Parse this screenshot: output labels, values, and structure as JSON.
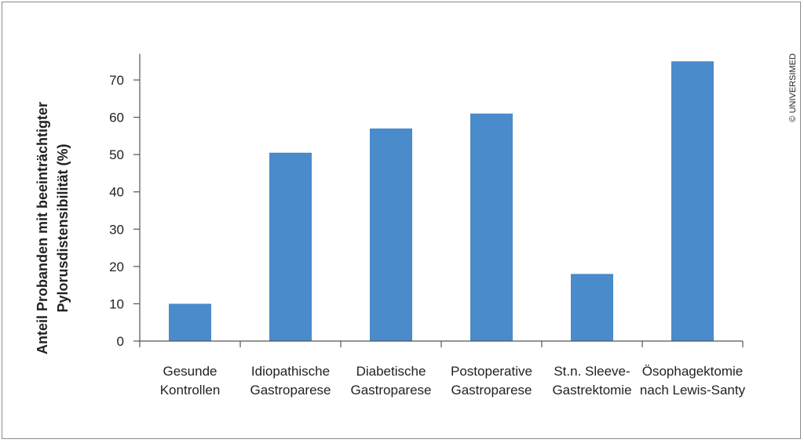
{
  "copyright": "© UNIVERSIMED",
  "chart_data": {
    "type": "bar",
    "categories": [
      [
        "Gesunde",
        "Kontrollen"
      ],
      [
        "Idiopathische",
        "Gastroparese"
      ],
      [
        "Diabetische",
        "Gastroparese"
      ],
      [
        "Postoperative",
        "Gastroparese"
      ],
      [
        "St.n. Sleeve-",
        "Gastrektomie"
      ],
      [
        "Ösophagektomie",
        "nach Lewis-Santy"
      ]
    ],
    "values": [
      10,
      50.5,
      57,
      61,
      18,
      75
    ],
    "ylabel": [
      "Anteil Probanden mit beeinträchtigter",
      "Pylorusdistensibilität (%)"
    ],
    "xlabel": "",
    "ylim": [
      0,
      77
    ],
    "yticks": [
      0,
      10,
      20,
      30,
      40,
      50,
      60,
      70
    ],
    "bar_color": "#4a8bcb",
    "axis_color": "#555555",
    "grid": false
  }
}
